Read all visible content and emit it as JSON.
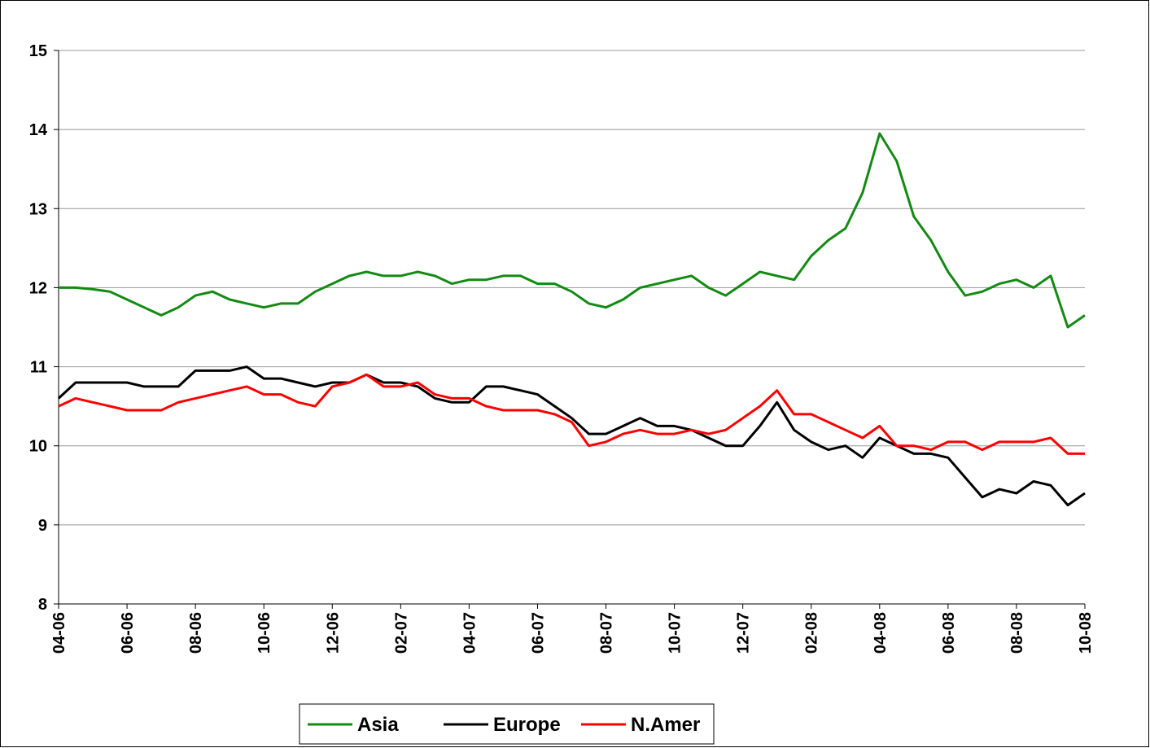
{
  "chart_data": {
    "type": "line",
    "categories": [
      "04-06",
      null,
      null,
      null,
      "06-06",
      null,
      null,
      null,
      "08-06",
      null,
      null,
      null,
      "10-06",
      null,
      null,
      null,
      "12-06",
      null,
      null,
      null,
      "02-07",
      null,
      null,
      null,
      "04-07",
      null,
      null,
      null,
      "06-07",
      null,
      null,
      null,
      "08-07",
      null,
      null,
      null,
      "10-07",
      null,
      null,
      null,
      "12-07",
      null,
      null,
      null,
      "02-08",
      null,
      null,
      null,
      "04-08",
      null,
      null,
      null,
      "06-08",
      null,
      null,
      null,
      "08-08",
      null,
      null,
      null,
      "10-08"
    ],
    "series": [
      {
        "name": "Asia",
        "color": "#138a13",
        "values": [
          12.0,
          12.0,
          11.98,
          11.95,
          11.85,
          11.75,
          11.65,
          11.75,
          11.9,
          11.95,
          11.85,
          11.8,
          11.75,
          11.8,
          11.8,
          11.95,
          12.05,
          12.15,
          12.2,
          12.15,
          12.15,
          12.2,
          12.15,
          12.05,
          12.1,
          12.1,
          12.15,
          12.15,
          12.05,
          12.05,
          11.95,
          11.8,
          11.75,
          11.85,
          12.0,
          12.05,
          12.1,
          12.15,
          12.0,
          11.9,
          12.05,
          12.2,
          12.15,
          12.1,
          12.4,
          12.6,
          12.75,
          13.2,
          13.95,
          13.6,
          12.9,
          12.6,
          12.2,
          11.9,
          11.95,
          12.05,
          12.1,
          12.0,
          12.15,
          11.5,
          11.65
        ]
      },
      {
        "name": "Europe",
        "color": "#000000",
        "values": [
          10.6,
          10.8,
          10.8,
          10.8,
          10.8,
          10.75,
          10.75,
          10.75,
          10.95,
          10.95,
          10.95,
          11.0,
          10.85,
          10.85,
          10.8,
          10.75,
          10.8,
          10.8,
          10.9,
          10.8,
          10.8,
          10.75,
          10.6,
          10.55,
          10.55,
          10.75,
          10.75,
          10.7,
          10.65,
          10.5,
          10.35,
          10.15,
          10.15,
          10.25,
          10.35,
          10.25,
          10.25,
          10.2,
          10.1,
          10.0,
          10.0,
          10.25,
          10.55,
          10.2,
          10.05,
          9.95,
          10.0,
          9.85,
          10.1,
          10.0,
          9.9,
          9.9,
          9.85,
          9.6,
          9.35,
          9.45,
          9.4,
          9.55,
          9.5,
          9.25,
          9.4
        ]
      },
      {
        "name": "N.Amer",
        "color": "#ff0000",
        "values": [
          10.5,
          10.6,
          10.55,
          10.5,
          10.45,
          10.45,
          10.45,
          10.55,
          10.6,
          10.65,
          10.7,
          10.75,
          10.65,
          10.65,
          10.55,
          10.5,
          10.75,
          10.8,
          10.9,
          10.75,
          10.75,
          10.8,
          10.65,
          10.6,
          10.6,
          10.5,
          10.45,
          10.45,
          10.45,
          10.4,
          10.3,
          10.0,
          10.05,
          10.15,
          10.2,
          10.15,
          10.15,
          10.2,
          10.15,
          10.2,
          10.35,
          10.5,
          10.7,
          10.4,
          10.4,
          10.3,
          10.2,
          10.1,
          10.25,
          10.0,
          10.0,
          9.95,
          10.05,
          10.05,
          9.95,
          10.05,
          10.05,
          10.05,
          10.1,
          9.9,
          9.9
        ]
      }
    ],
    "ylim": [
      8,
      15
    ],
    "yticks": [
      8,
      9,
      10,
      11,
      12,
      13,
      14,
      15
    ],
    "grid": true,
    "legend": "bottom"
  }
}
